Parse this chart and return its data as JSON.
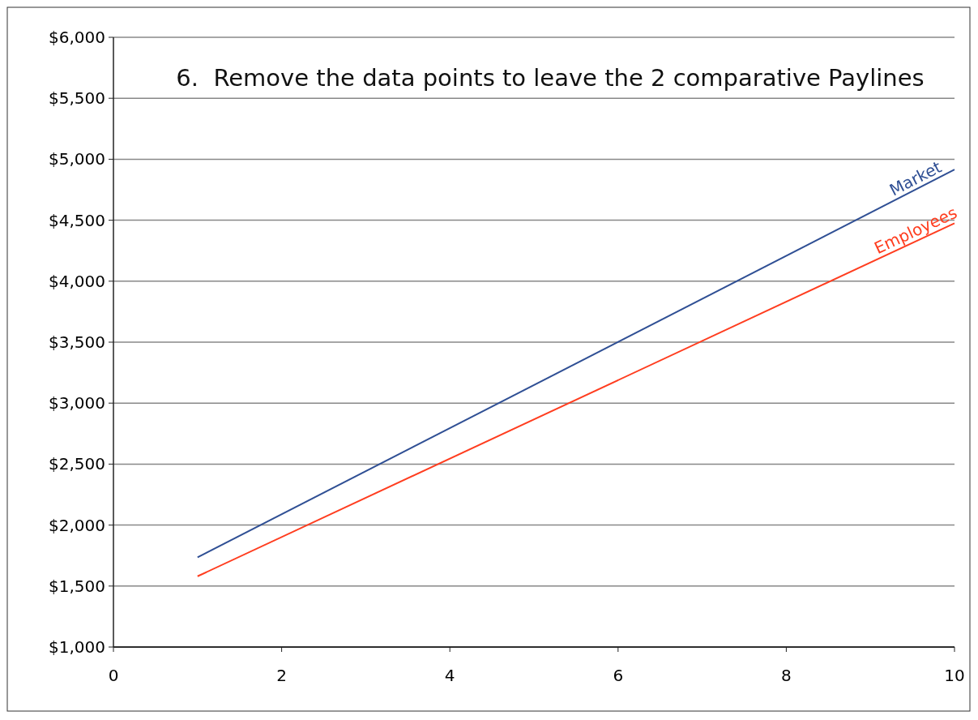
{
  "chart_data": {
    "type": "line",
    "title": "6.  Remove the data points to leave the 2 comparative Paylines",
    "x": [
      1,
      10
    ],
    "series": [
      {
        "name": "Market",
        "color": "#2f4f94",
        "values": [
          1735,
          4915
        ]
      },
      {
        "name": "Employees",
        "color": "#ff3d1f",
        "values": [
          1580,
          4475
        ]
      }
    ],
    "xlim": [
      0,
      10
    ],
    "xticks": [
      0,
      2,
      4,
      6,
      8,
      10
    ],
    "ylim": [
      1000,
      6000
    ],
    "yticks": [
      {
        "value": 1000,
        "label": "$1,000"
      },
      {
        "value": 1500,
        "label": "$1,500"
      },
      {
        "value": 2000,
        "label": "$2,000"
      },
      {
        "value": 2500,
        "label": "$2,500"
      },
      {
        "value": 3000,
        "label": "$3,000"
      },
      {
        "value": 3500,
        "label": "$3,500"
      },
      {
        "value": 4000,
        "label": "$4,000"
      },
      {
        "value": 4500,
        "label": "$4,500"
      },
      {
        "value": 5000,
        "label": "$5,000"
      },
      {
        "value": 5500,
        "label": "$5,500"
      },
      {
        "value": 6000,
        "label": "$6,000"
      }
    ],
    "grid": "y",
    "marker": "none",
    "line_style": "solid"
  }
}
